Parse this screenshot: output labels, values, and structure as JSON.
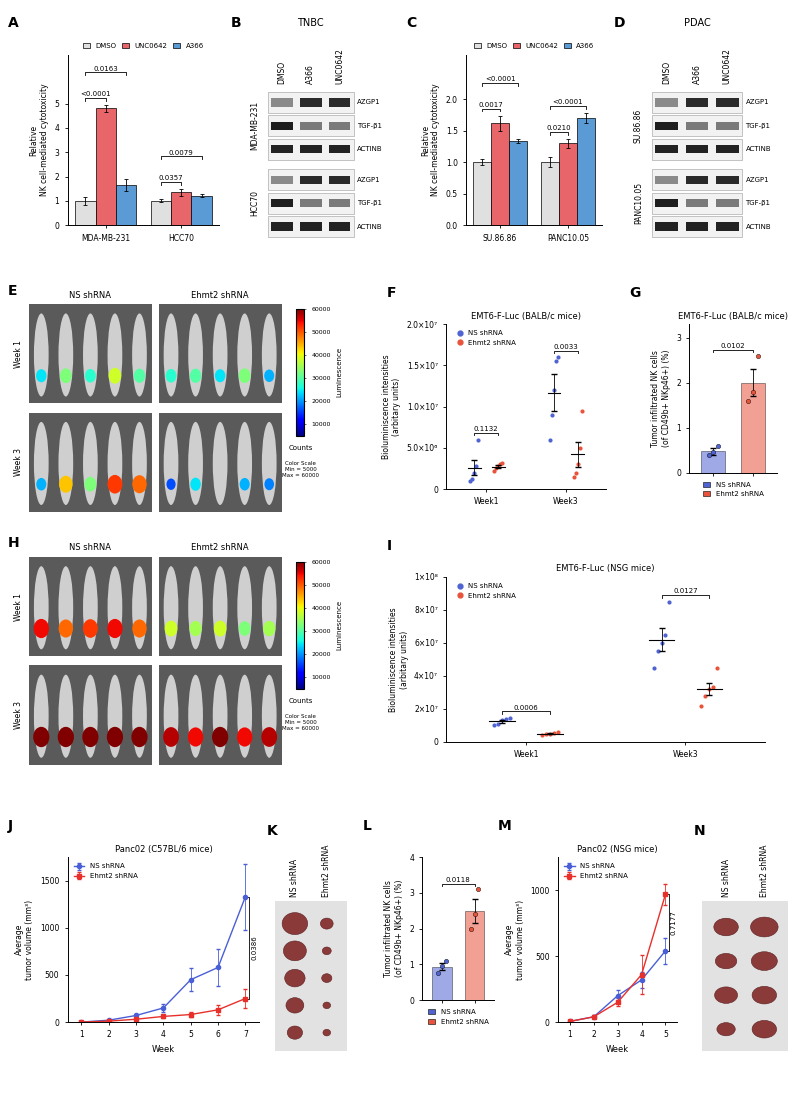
{
  "chart_data": [
    {
      "panel": "A",
      "type": "bar",
      "ylabel": "Relative\nNK cell-mediated cytotoxicity",
      "categories": [
        "MDA-MB-231",
        "HCC70"
      ],
      "series": [
        {
          "name": "DMSO",
          "color": "#e0e0e0",
          "values": [
            1.0,
            1.0
          ],
          "errors": [
            0.15,
            0.06
          ]
        },
        {
          "name": "UNC0642",
          "color": "#e8656a",
          "values": [
            4.8,
            1.35
          ],
          "errors": [
            0.15,
            0.15
          ]
        },
        {
          "name": "A366",
          "color": "#5b9bd5",
          "values": [
            1.65,
            1.22
          ],
          "errors": [
            0.25,
            0.05
          ]
        }
      ],
      "ylim": [
        0,
        7
      ],
      "yticks": [
        0,
        1,
        2,
        3,
        4,
        5
      ],
      "annotations": [
        {
          "text": "<0.0001",
          "category": "MDA-MB-231",
          "series": [
            "DMSO",
            "UNC0642"
          ]
        },
        {
          "text": "0.0163",
          "category": "MDA-MB-231",
          "series": [
            "DMSO",
            "A366"
          ]
        },
        {
          "text": "0.0357",
          "category": "HCC70",
          "series": [
            "DMSO",
            "UNC0642"
          ]
        },
        {
          "text": "0.0079",
          "category": "HCC70",
          "series": [
            "DMSO",
            "A366"
          ]
        }
      ]
    },
    {
      "panel": "C",
      "type": "bar",
      "ylabel": "Relative\nNK cell-mediated cytotoxicity",
      "categories": [
        "SU.86.86",
        "PANC10.05"
      ],
      "series": [
        {
          "name": "DMSO",
          "color": "#e0e0e0",
          "values": [
            1.0,
            1.0
          ],
          "errors": [
            0.05,
            0.08
          ]
        },
        {
          "name": "UNC0642",
          "color": "#e8656a",
          "values": [
            1.62,
            1.3
          ],
          "errors": [
            0.12,
            0.07
          ]
        },
        {
          "name": "A366",
          "color": "#5b9bd5",
          "values": [
            1.33,
            1.7
          ],
          "errors": [
            0.03,
            0.08
          ]
        }
      ],
      "ylim": [
        0,
        2.7
      ],
      "yticks": [
        {
          "value": 0,
          "label": "0.0"
        },
        0.5,
        1.0,
        1.5,
        2.0
      ],
      "annotations": [
        {
          "text": "0.0017",
          "category": "SU.86.86",
          "series": [
            "DMSO",
            "UNC0642"
          ]
        },
        {
          "text": "<0.0001",
          "category": "SU.86.86",
          "series": [
            "DMSO",
            "A366"
          ]
        },
        {
          "text": "0.0210",
          "category": "PANC10.05",
          "series": [
            "DMSO",
            "UNC0642"
          ]
        },
        {
          "text": "<0.0001",
          "category": "PANC10.05",
          "series": [
            "DMSO",
            "A366"
          ]
        }
      ]
    },
    {
      "panel": "F",
      "type": "scatter",
      "title": "EMT6-F-Luc (BALB/c mice)",
      "ylabel": "Bioluminiscence intensities\n(arbitary units)",
      "categories": [
        "Week1",
        "Week3"
      ],
      "series": [
        {
          "name": "NS shRNA",
          "color": "#4f63d2",
          "values": [
            2600000.0,
            11700000.0
          ],
          "errors": [
            900000.0,
            2200000.0
          ],
          "points": [
            [
              1000000.0,
              1200000.0,
              2000000.0,
              2800000.0,
              6000000.0
            ],
            [
              6000000.0,
              9000000.0,
              12000000.0,
              15500000.0,
              16000000.0
            ]
          ]
        },
        {
          "name": "Ehmt2 shRNA",
          "color": "#e8533b",
          "values": [
            2700000.0,
            4200000.0
          ],
          "errors": [
            200000.0,
            1500000.0
          ],
          "points": [
            [
              2200000.0,
              2500000.0,
              2800000.0,
              3000000.0,
              3200000.0
            ],
            [
              1500000.0,
              2000000.0,
              3000000.0,
              5000000.0,
              9500000.0
            ]
          ]
        }
      ],
      "ylim": [
        0,
        20000000.0
      ],
      "yticks": [
        0,
        {
          "value": 5000000.0,
          "label": "5.0×10⁶"
        },
        {
          "value": 10000000.0,
          "label": "1.0×10⁷"
        },
        {
          "value": 15000000.0,
          "label": "1.5×10⁷"
        },
        {
          "value": 20000000.0,
          "label": "2.0×10⁷"
        }
      ],
      "annotations": [
        {
          "text": "0.1132",
          "category": "Week1",
          "series": [
            "NS shRNA",
            "Ehmt2 shRNA"
          ]
        },
        {
          "text": "0.0033",
          "category": "Week3",
          "series": [
            "NS shRNA",
            "Ehmt2 shRNA"
          ]
        }
      ]
    },
    {
      "panel": "G",
      "type": "bar",
      "title": "EMT6-F-Luc (BALB/c mice)",
      "ylabel": "Tumor infiltrated NK cells\n(of CD49b+ NKp46+) (%)",
      "categories": [
        "NS shRNA",
        "Ehmt2 shRNA"
      ],
      "values": [
        0.47,
        2.0
      ],
      "errors": [
        0.07,
        0.3
      ],
      "points": [
        [
          0.38,
          0.45,
          0.58
        ],
        [
          1.6,
          1.8,
          2.6
        ]
      ],
      "colors": [
        "#4f63d2",
        "#e8533b"
      ],
      "tick_labels": "y",
      "ylim": [
        0,
        3.3
      ],
      "yticks": [
        0,
        1,
        2,
        3
      ],
      "annotations": [
        {
          "text": "0.0102",
          "categories": [
            "NS shRNA",
            "Ehmt2 shRNA"
          ]
        }
      ]
    },
    {
      "panel": "I",
      "type": "scatter",
      "title": "EMT6-F-Luc (NSG mice)",
      "ylabel": "Bioluminiscence intensities\n(arbitary units)",
      "categories": [
        "Week1",
        "Week3"
      ],
      "series": [
        {
          "name": "NS shRNA",
          "color": "#4f63d2",
          "values": [
            12500000.0,
            62000000.0
          ],
          "errors": [
            1000000.0,
            6800000.0
          ],
          "points": [
            [
              10000000.0,
              11000000.0,
              13000000.0,
              14000000.0,
              14500000.0
            ],
            [
              45000000.0,
              55000000.0,
              60000000.0,
              65000000.0,
              85000000.0
            ]
          ]
        },
        {
          "name": "Ehmt2 shRNA",
          "color": "#e8533b",
          "values": [
            5000000.0,
            32000000.0
          ],
          "errors": [
            350000.0,
            3800000.0
          ],
          "points": [
            [
              4000000.0,
              4500000.0,
              5000000.0,
              5500000.0,
              6000000.0
            ],
            [
              22000000.0,
              28000000.0,
              32000000.0,
              33000000.0,
              45000000.0
            ]
          ]
        }
      ],
      "ylim": [
        0,
        100000000.0
      ],
      "yticks": [
        0,
        {
          "value": 20000000.0,
          "label": "2×10⁷"
        },
        {
          "value": 40000000.0,
          "label": "4×10⁷"
        },
        {
          "value": 60000000.0,
          "label": "6×10⁷"
        },
        {
          "value": 80000000.0,
          "label": "8×10⁷"
        },
        {
          "value": 100000000.0,
          "label": "1×10⁸"
        }
      ],
      "annotations": [
        {
          "text": "0.0006",
          "category": "Week1",
          "series": [
            "NS shRNA",
            "Ehmt2 shRNA"
          ]
        },
        {
          "text": "0.0127",
          "category": "Week3",
          "series": [
            "NS shRNA",
            "Ehmt2 shRNA"
          ]
        }
      ]
    },
    {
      "panel": "J",
      "type": "line",
      "title": "Panc02 (C57BL/6 mice)",
      "xlabel": "Week",
      "ylabel": "Average\ntumor volume (mm³)",
      "x": [
        1,
        2,
        3,
        4,
        5,
        6,
        7
      ],
      "series": [
        {
          "name": "NS shRNA",
          "color": "#4a5fd6",
          "marker": "circle",
          "values": [
            0,
            20,
            70,
            150,
            450,
            580,
            1330
          ],
          "errors": [
            0,
            5,
            20,
            40,
            120,
            200,
            350
          ]
        },
        {
          "name": "Ehmt2 shRNA",
          "color": "#e8302b",
          "marker": "square",
          "values": [
            0,
            10,
            30,
            60,
            80,
            130,
            250
          ],
          "errors": [
            0,
            3,
            10,
            20,
            30,
            50,
            100
          ]
        }
      ],
      "xlim": [
        0.5,
        7.5
      ],
      "xticks": [
        1,
        2,
        3,
        4,
        5,
        6,
        7
      ],
      "ylim": [
        0,
        1750
      ],
      "yticks": [
        0,
        500,
        1000,
        1500
      ],
      "annotations": [
        {
          "text": "0.0386",
          "x": 7
        }
      ]
    },
    {
      "panel": "L",
      "type": "bar",
      "ylabel": "Tumor infiltrated NK cells\n(of CD49b+ NKp46+) (%)",
      "categories": [
        "NS shRNA",
        "Ehmt2 shRNA"
      ],
      "values": [
        0.93,
        2.5
      ],
      "errors": [
        0.1,
        0.33
      ],
      "points": [
        [
          0.75,
          0.95,
          1.1
        ],
        [
          2.0,
          2.4,
          3.1
        ]
      ],
      "colors": [
        "#4f63d2",
        "#e8533b"
      ],
      "tick_labels": "y",
      "ylim": [
        0,
        4
      ],
      "yticks": [
        0,
        1,
        2,
        3,
        4
      ],
      "annotations": [
        {
          "text": "0.0118",
          "categories": [
            "NS shRNA",
            "Ehmt2 shRNA"
          ]
        }
      ]
    },
    {
      "panel": "M",
      "type": "line",
      "title": "Panc02 (NSG mice)",
      "xlabel": "Week",
      "ylabel": "Average\ntumor volume (mm³)",
      "x": [
        1,
        2,
        3,
        4,
        5
      ],
      "series": [
        {
          "name": "NS shRNA",
          "color": "#4a5fd6",
          "marker": "circle",
          "values": [
            5,
            40,
            200,
            320,
            540
          ],
          "errors": [
            2,
            10,
            40,
            60,
            100
          ]
        },
        {
          "name": "Ehmt2 shRNA",
          "color": "#e8302b",
          "marker": "square",
          "values": [
            5,
            40,
            150,
            360,
            970
          ],
          "errors": [
            2,
            10,
            30,
            150,
            80
          ]
        }
      ],
      "xlim": [
        0.5,
        5.5
      ],
      "xticks": [
        1,
        2,
        3,
        4,
        5
      ],
      "ylim": [
        0,
        1250
      ],
      "yticks": [
        0,
        500,
        1000
      ],
      "annotations": [
        {
          "text": "0.7177",
          "x": 5
        }
      ]
    }
  ],
  "blots": [
    {
      "panel": "B",
      "title": "TNBC",
      "lanes": [
        "DMSO",
        "A366",
        "UNC0642"
      ],
      "blocks": [
        {
          "label": "MDA-MB-231",
          "rows": [
            "AZGP1",
            "TGF-β1",
            "ACTINB"
          ]
        },
        {
          "label": "HCC70",
          "rows": [
            "AZGP1",
            "TGF-β1",
            "ACTINB"
          ]
        }
      ]
    },
    {
      "panel": "D",
      "title": "PDAC",
      "lanes": [
        "DMSO",
        "A366",
        "UNC0642"
      ],
      "blocks": [
        {
          "label": "SU.86.86",
          "rows": [
            "AZGP1",
            "TGF-β1",
            "ACTINB"
          ]
        },
        {
          "label": "PANC10.05",
          "rows": [
            "AZGP1",
            "TGF-β1",
            "ACTINB"
          ]
        }
      ]
    }
  ],
  "images": [
    {
      "panel": "E",
      "groups": [
        "NS shRNA",
        "Ehmt2 shRNA"
      ],
      "rows": [
        "Week 1",
        "Week 3"
      ],
      "mice_per_group": 5,
      "colorbar": {
        "label": "Luminescence",
        "range": [
          5000,
          60000
        ],
        "ticks": [
          10000,
          20000,
          30000,
          40000,
          50000,
          60000
        ],
        "unit": "Counts",
        "note": "Color Scale\nMin = 5000\nMax = 60000"
      }
    },
    {
      "panel": "H",
      "groups": [
        "NS shRNA",
        "Ehmt2 shRNA"
      ],
      "rows": [
        "Week 1",
        "Week 3"
      ],
      "mice_per_group": 5,
      "colorbar": {
        "label": "Luminescence",
        "range": [
          5000,
          60000
        ],
        "ticks": [
          10000,
          20000,
          30000,
          40000,
          50000,
          60000
        ],
        "unit": "Counts",
        "note": "Color Scale\nMin = 5000\nMax = 60000"
      }
    }
  ],
  "photos": [
    {
      "panel": "K",
      "groups": [
        "NS shRNA",
        "Ehmt2 shRNA"
      ],
      "tumors_per_group": 5
    },
    {
      "panel": "N",
      "groups": [
        "NS shRNA",
        "Ehmt2 shRNA"
      ],
      "tumors_per_group": 4
    }
  ]
}
